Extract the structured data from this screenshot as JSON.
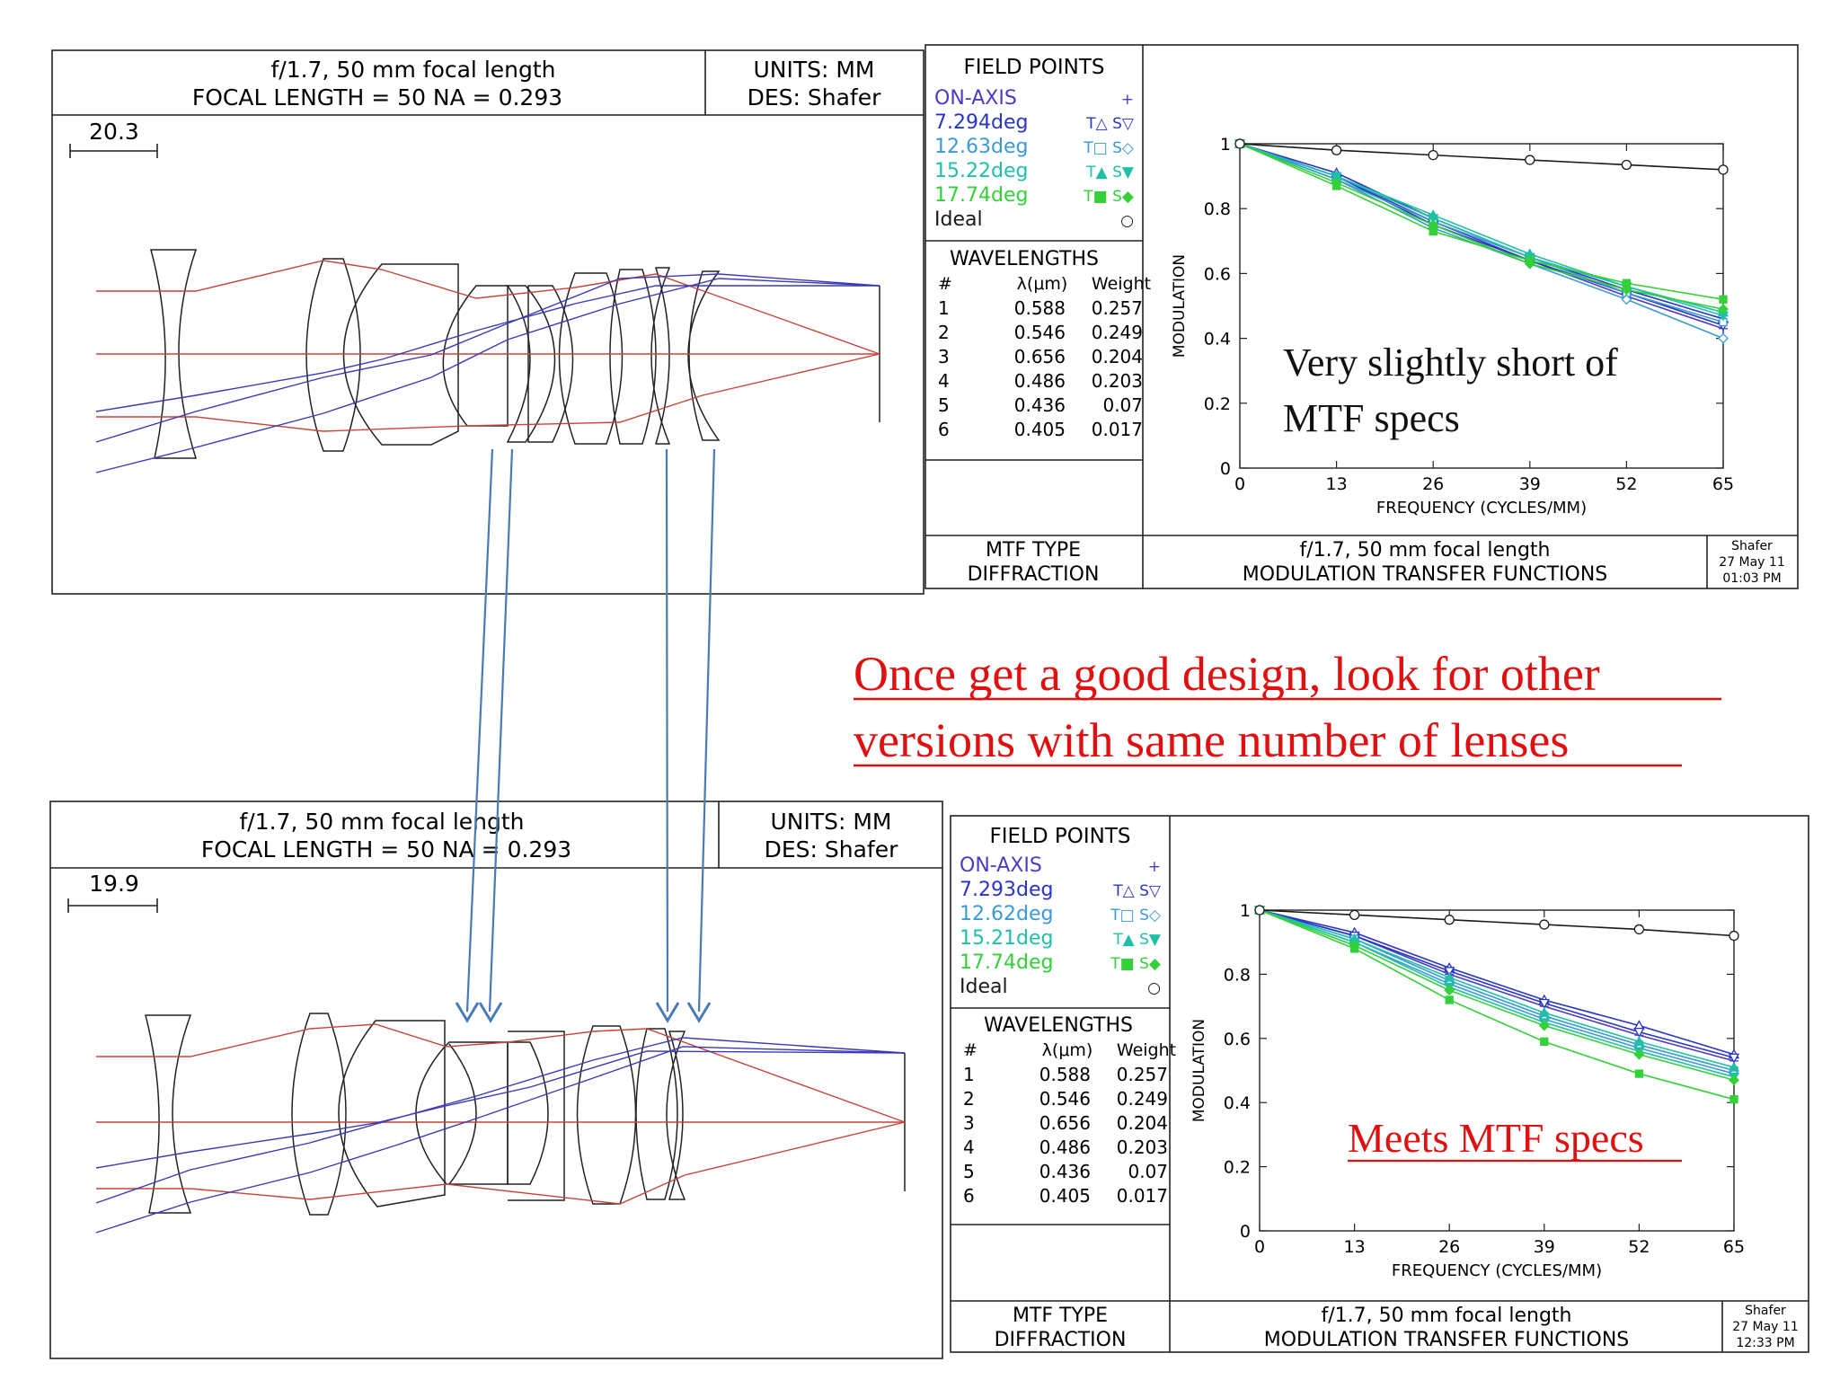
{
  "top": {
    "layout": {
      "title_line1": "f/1.7, 50 mm focal length",
      "title_line2": "FOCAL LENGTH = 50   NA = 0.293",
      "units": "UNITS: MM",
      "designer": "DES: Shafer",
      "scale": "20.3"
    },
    "mtf": {
      "field_header": "FIELD POINTS",
      "fields": [
        {
          "label": "ON-AXIS",
          "marks": "+",
          "color": "#4b3cc4"
        },
        {
          "label": "7.294deg",
          "marks": "T△ S▽",
          "color": "#2a34c8"
        },
        {
          "label": "12.63deg",
          "marks": "T□ S◇",
          "color": "#3a9ad6"
        },
        {
          "label": "15.22deg",
          "marks": "T▲ S▼",
          "color": "#20c0a8"
        },
        {
          "label": "17.74deg",
          "marks": "T■ S◆",
          "color": "#34d038"
        },
        {
          "label": "Ideal",
          "marks": "○",
          "color": "#1a1a1a"
        }
      ],
      "wavelength_header": "WAVELENGTHS",
      "wl_cols": [
        "#",
        "λ(μm)",
        "Weight"
      ],
      "wavelengths": [
        [
          "1",
          "0.588",
          "0.257"
        ],
        [
          "2",
          "0.546",
          "0.249"
        ],
        [
          "3",
          "0.656",
          "0.204"
        ],
        [
          "4",
          "0.486",
          "0.203"
        ],
        [
          "5",
          "0.436",
          "0.07"
        ],
        [
          "6",
          "0.405",
          "0.017"
        ]
      ],
      "type_line1": "MTF TYPE",
      "type_line2": "DIFFRACTION",
      "footer_line1": "f/1.7, 50 mm focal length",
      "footer_line2": "MODULATION TRANSFER FUNCTIONS",
      "stamp": [
        "Shafer",
        "27 May 11",
        "01:03 PM"
      ],
      "ylabel": "MODULATION",
      "xlabel": "FREQUENCY (CYCLES/MM)",
      "annotation": [
        "Very slightly short of",
        "MTF specs"
      ]
    }
  },
  "bottom": {
    "layout": {
      "title_line1": "f/1.7, 50 mm focal length",
      "title_line2": "FOCAL LENGTH = 50   NA = 0.293",
      "units": "UNITS: MM",
      "designer": "DES: Shafer",
      "scale": "19.9"
    },
    "mtf": {
      "field_header": "FIELD POINTS",
      "fields": [
        {
          "label": "ON-AXIS",
          "marks": "+",
          "color": "#4b3cc4"
        },
        {
          "label": "7.293deg",
          "marks": "T△ S▽",
          "color": "#2a34c8"
        },
        {
          "label": "12.62deg",
          "marks": "T□ S◇",
          "color": "#3a9ad6"
        },
        {
          "label": "15.21deg",
          "marks": "T▲ S▼",
          "color": "#20c0a8"
        },
        {
          "label": "17.74deg",
          "marks": "T■ S◆",
          "color": "#34d038"
        },
        {
          "label": "Ideal",
          "marks": "○",
          "color": "#1a1a1a"
        }
      ],
      "wavelength_header": "WAVELENGTHS",
      "wl_cols": [
        "#",
        "λ(μm)",
        "Weight"
      ],
      "wavelengths": [
        [
          "1",
          "0.588",
          "0.257"
        ],
        [
          "2",
          "0.546",
          "0.249"
        ],
        [
          "3",
          "0.656",
          "0.204"
        ],
        [
          "4",
          "0.486",
          "0.203"
        ],
        [
          "5",
          "0.436",
          "0.07"
        ],
        [
          "6",
          "0.405",
          "0.017"
        ]
      ],
      "type_line1": "MTF TYPE",
      "type_line2": "DIFFRACTION",
      "footer_line1": "f/1.7, 50 mm focal length",
      "footer_line2": "MODULATION TRANSFER FUNCTIONS",
      "stamp": [
        "Shafer",
        "27 May 11",
        "12:33 PM"
      ],
      "ylabel": "MODULATION",
      "xlabel": "FREQUENCY (CYCLES/MM)",
      "annotation": [
        "Meets MTF specs"
      ]
    }
  },
  "headline": [
    "Once get a good design, look for other",
    "versions with same number of lenses"
  ],
  "colors": {
    "marginal_ray": "#c8443a",
    "chief_ray": "#3a3ab8",
    "arrow": "#4a7ab8",
    "headline": "#e01010"
  },
  "chart_data": [
    {
      "type": "line",
      "x": [
        0,
        13,
        26,
        39,
        52,
        65
      ],
      "xlim": [
        0,
        65
      ],
      "ylim": [
        0,
        1
      ],
      "yticks": [
        0,
        0.2,
        0.4,
        0.6,
        0.8,
        1
      ],
      "xlabel": "FREQUENCY (CYCLES/MM)",
      "ylabel": "MODULATION",
      "series": [
        {
          "values": [
            1,
            0.9,
            0.76,
            0.64,
            0.53,
            0.43
          ],
          "color": "#4b3cc4",
          "marker": "+"
        },
        {
          "values": [
            1,
            0.91,
            0.77,
            0.65,
            0.55,
            0.46
          ],
          "color": "#2a34c8",
          "marker": "tri-up"
        },
        {
          "values": [
            1,
            0.9,
            0.75,
            0.64,
            0.54,
            0.44
          ],
          "color": "#2a34c8",
          "marker": "tri-down"
        },
        {
          "values": [
            1,
            0.89,
            0.76,
            0.65,
            0.54,
            0.45
          ],
          "color": "#3a9ad6",
          "marker": "square"
        },
        {
          "values": [
            1,
            0.89,
            0.74,
            0.63,
            0.52,
            0.4
          ],
          "color": "#3a9ad6",
          "marker": "diamond"
        },
        {
          "values": [
            1,
            0.9,
            0.78,
            0.66,
            0.56,
            0.48
          ],
          "color": "#20c0a8",
          "marker": "tri-up-f"
        },
        {
          "values": [
            1,
            0.9,
            0.77,
            0.65,
            0.56,
            0.47
          ],
          "color": "#20c0a8",
          "marker": "tri-down-f"
        },
        {
          "values": [
            1,
            0.87,
            0.73,
            0.64,
            0.57,
            0.52
          ],
          "color": "#34d038",
          "marker": "square-f"
        },
        {
          "values": [
            1,
            0.88,
            0.75,
            0.63,
            0.55,
            0.49
          ],
          "color": "#34d038",
          "marker": "diamond-f"
        },
        {
          "values": [
            1,
            0.98,
            0.965,
            0.95,
            0.935,
            0.92
          ],
          "color": "#1a1a1a",
          "marker": "circle"
        }
      ]
    },
    {
      "type": "line",
      "x": [
        0,
        13,
        26,
        39,
        52,
        65
      ],
      "xlim": [
        0,
        65
      ],
      "ylim": [
        0,
        1
      ],
      "yticks": [
        0,
        0.2,
        0.4,
        0.6,
        0.8,
        1
      ],
      "xlabel": "FREQUENCY (CYCLES/MM)",
      "ylabel": "MODULATION",
      "series": [
        {
          "values": [
            1,
            0.92,
            0.8,
            0.7,
            0.61,
            0.53
          ],
          "color": "#4b3cc4",
          "marker": "+"
        },
        {
          "values": [
            1,
            0.93,
            0.82,
            0.72,
            0.64,
            0.55
          ],
          "color": "#2a34c8",
          "marker": "tri-up"
        },
        {
          "values": [
            1,
            0.92,
            0.81,
            0.71,
            0.62,
            0.54
          ],
          "color": "#2a34c8",
          "marker": "tri-down"
        },
        {
          "values": [
            1,
            0.91,
            0.78,
            0.67,
            0.58,
            0.5
          ],
          "color": "#3a9ad6",
          "marker": "square"
        },
        {
          "values": [
            1,
            0.9,
            0.77,
            0.66,
            0.57,
            0.49
          ],
          "color": "#3a9ad6",
          "marker": "diamond"
        },
        {
          "values": [
            1,
            0.91,
            0.79,
            0.68,
            0.59,
            0.51
          ],
          "color": "#20c0a8",
          "marker": "tri-up-f"
        },
        {
          "values": [
            1,
            0.9,
            0.76,
            0.65,
            0.56,
            0.48
          ],
          "color": "#20c0a8",
          "marker": "tri-down-f"
        },
        {
          "values": [
            1,
            0.88,
            0.72,
            0.59,
            0.49,
            0.41
          ],
          "color": "#34d038",
          "marker": "square-f"
        },
        {
          "values": [
            1,
            0.89,
            0.75,
            0.64,
            0.55,
            0.47
          ],
          "color": "#34d038",
          "marker": "diamond-f"
        },
        {
          "values": [
            1,
            0.985,
            0.97,
            0.955,
            0.94,
            0.92
          ],
          "color": "#1a1a1a",
          "marker": "circle"
        }
      ]
    }
  ]
}
